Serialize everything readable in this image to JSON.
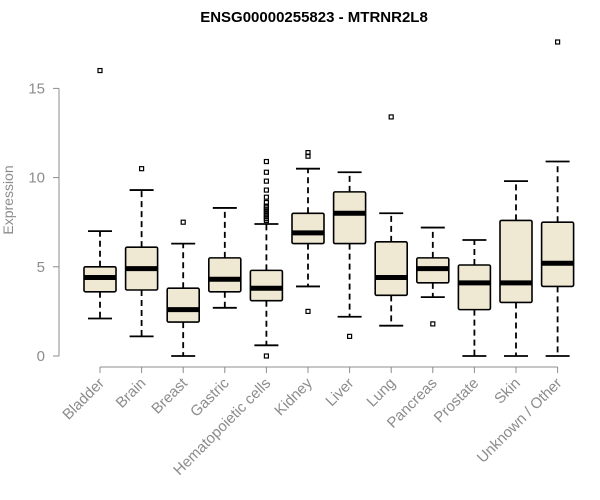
{
  "chart_data": {
    "type": "boxplot",
    "title": "ENSG00000255823 - MTRNR2L8",
    "xlabel": "",
    "ylabel": "Expression",
    "ylim": [
      0,
      17.6
    ],
    "yticks": [
      0,
      5,
      10,
      15
    ],
    "categories": [
      "Bladder",
      "Brain",
      "Breast",
      "Gastric",
      "Hematopoietic cells",
      "Kidney",
      "Liver",
      "Lung",
      "Pancreas",
      "Prostate",
      "Skin",
      "Unknown / Other"
    ],
    "boxes": [
      {
        "min": 2.1,
        "q1": 3.6,
        "median": 4.4,
        "q3": 5.0,
        "max": 7.0,
        "outliers": [
          16.0
        ]
      },
      {
        "min": 1.1,
        "q1": 3.7,
        "median": 4.9,
        "q3": 6.1,
        "max": 9.3,
        "outliers": [
          10.5
        ]
      },
      {
        "min": 0.0,
        "q1": 1.9,
        "median": 2.6,
        "q3": 3.8,
        "max": 6.3,
        "outliers": [
          7.5
        ]
      },
      {
        "min": 2.7,
        "q1": 3.6,
        "median": 4.3,
        "q3": 5.5,
        "max": 8.3,
        "outliers": []
      },
      {
        "min": 0.6,
        "q1": 3.1,
        "median": 3.8,
        "q3": 4.8,
        "max": 7.4,
        "outliers": [
          0.0,
          7.6,
          7.7,
          7.8,
          7.9,
          8.0,
          8.1,
          8.2,
          8.3,
          8.4,
          8.6,
          8.9,
          9.3,
          9.8,
          10.3,
          10.9
        ]
      },
      {
        "min": 3.9,
        "q1": 6.3,
        "median": 6.9,
        "q3": 8.0,
        "max": 10.5,
        "outliers": [
          2.5,
          11.2,
          11.4
        ]
      },
      {
        "min": 2.2,
        "q1": 6.3,
        "median": 8.0,
        "q3": 9.2,
        "max": 10.3,
        "outliers": [
          1.1
        ]
      },
      {
        "min": 1.7,
        "q1": 3.4,
        "median": 4.4,
        "q3": 6.4,
        "max": 8.0,
        "outliers": [
          13.4
        ]
      },
      {
        "min": 3.3,
        "q1": 4.1,
        "median": 4.9,
        "q3": 5.5,
        "max": 7.2,
        "outliers": [
          1.8
        ]
      },
      {
        "min": 0.0,
        "q1": 2.6,
        "median": 4.1,
        "q3": 5.1,
        "max": 6.5,
        "outliers": []
      },
      {
        "min": 0.0,
        "q1": 3.0,
        "median": 4.1,
        "q3": 7.6,
        "max": 9.8,
        "outliers": []
      },
      {
        "min": 0.0,
        "q1": 3.9,
        "median": 5.2,
        "q3": 7.5,
        "max": 10.9,
        "outliers": [
          17.6
        ]
      }
    ]
  },
  "colors": {
    "box_fill": "#efe8d2",
    "axis": "#8c8c8c"
  }
}
